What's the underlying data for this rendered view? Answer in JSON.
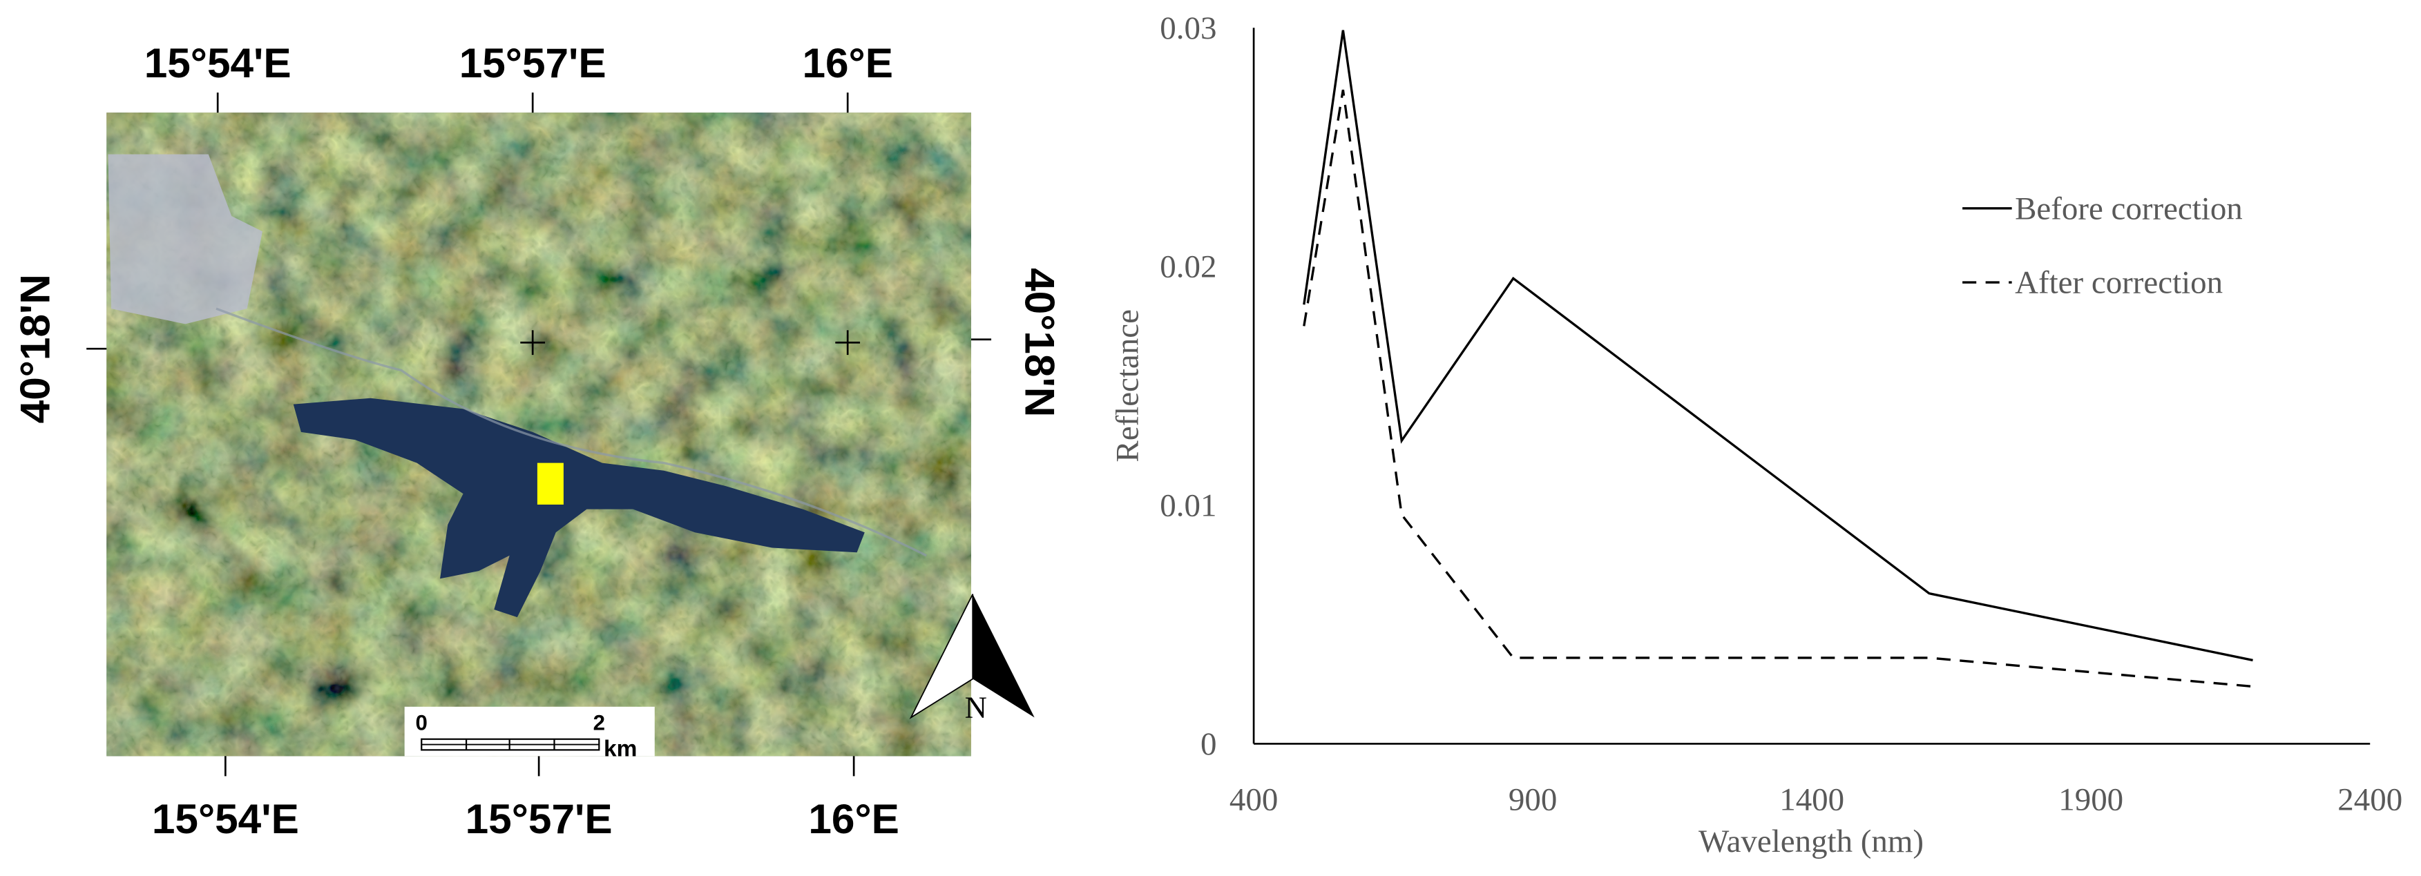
{
  "map": {
    "top_labels": [
      "15°54'E",
      "15°57'E",
      "16°E"
    ],
    "bottom_labels": [
      "15°54'E",
      "15°57'E",
      "16°E"
    ],
    "left_label": "40°18'N",
    "right_label": "40°18'N",
    "scale_bar": {
      "start": "0",
      "end": "2",
      "unit": "km"
    },
    "north": "N"
  },
  "chart_data": {
    "type": "line",
    "x_label": "Wavelength (nm)",
    "y_label": "Reflectance",
    "x": [
      490,
      560,
      665,
      865,
      1610,
      2190
    ],
    "xlim": [
      400,
      2400
    ],
    "xticks": [
      400,
      900,
      1400,
      1900,
      2400
    ],
    "ylim": [
      0,
      0.03
    ],
    "yticks": [
      0,
      0.01,
      0.02,
      0.03
    ],
    "grid": false,
    "legend": "upper right",
    "series": [
      {
        "name": "Before correction",
        "color": "#000000",
        "line_style": "solid",
        "values": [
          0.0184,
          0.0299,
          0.0127,
          0.0195,
          0.0063,
          0.0035
        ]
      },
      {
        "name": "After correction",
        "color": "#000000",
        "line_style": "dashed",
        "values": [
          0.0175,
          0.0274,
          0.0096,
          0.0036,
          0.0036,
          0.0024
        ]
      }
    ]
  }
}
